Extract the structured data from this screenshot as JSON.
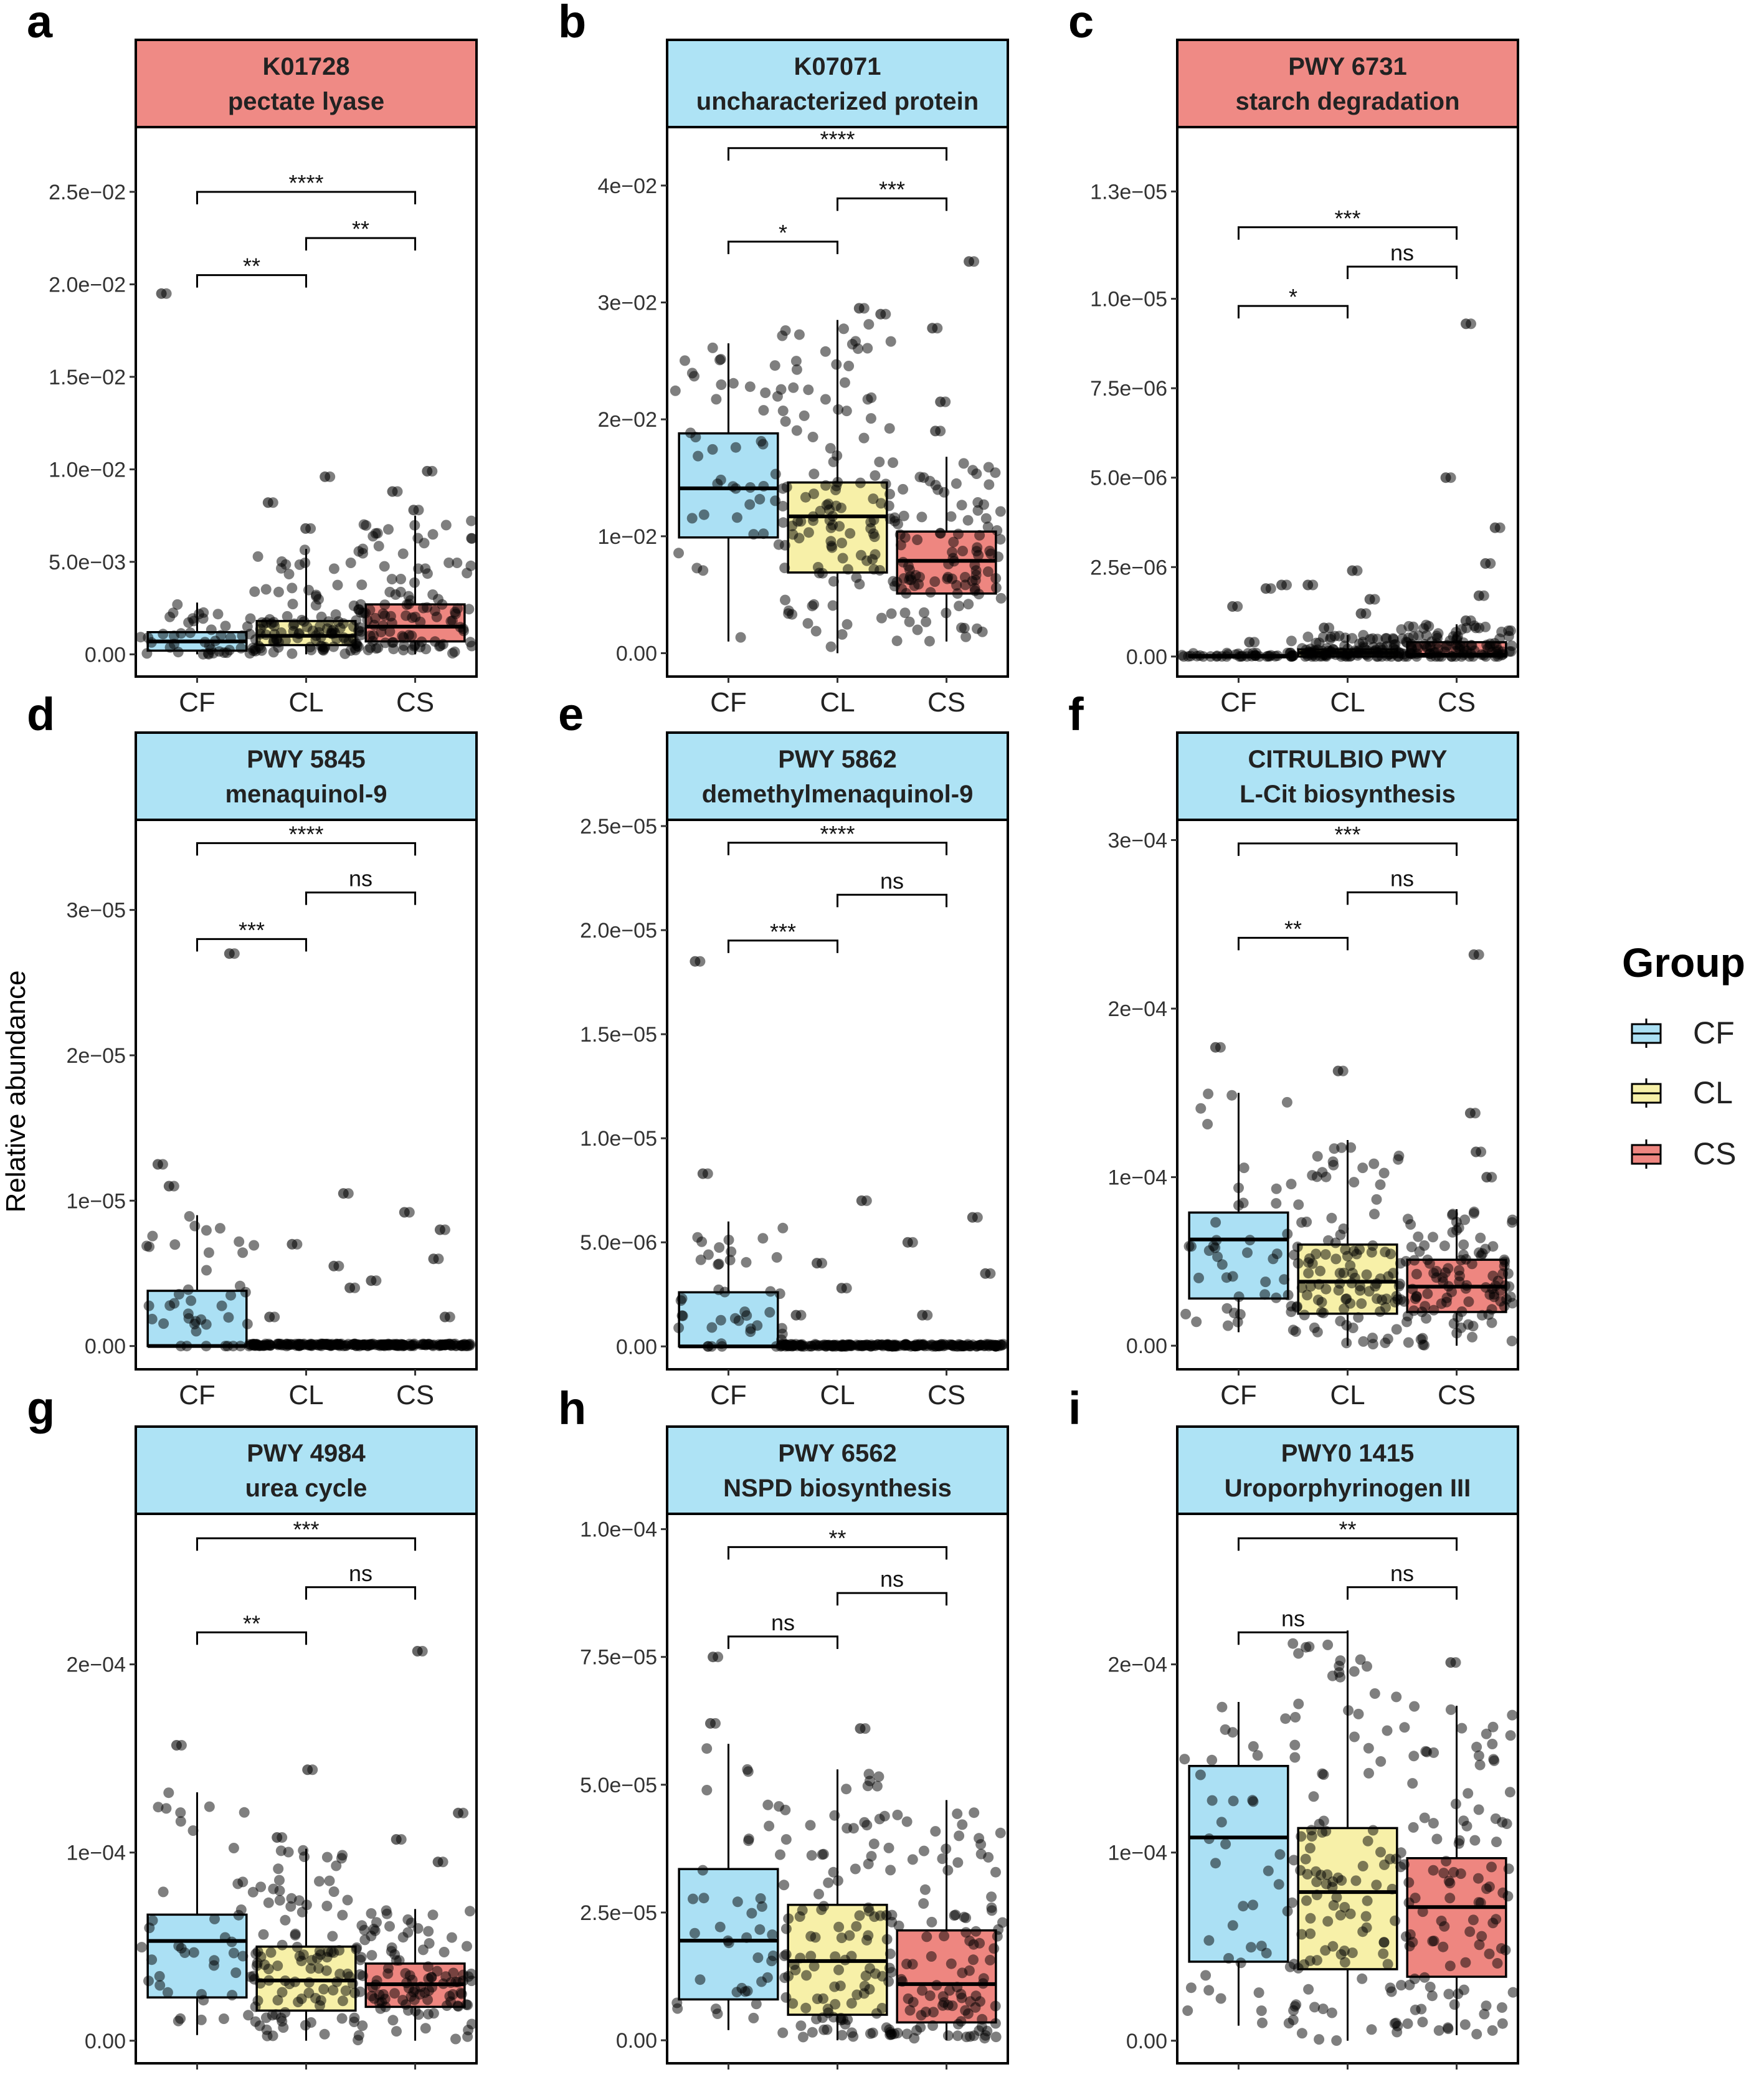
{
  "y_axis_label": "Relative abundance",
  "legend": {
    "title": "Group",
    "items": [
      {
        "label": "CF",
        "color": "#abe0f4"
      },
      {
        "label": "CL",
        "color": "#f7f0a8"
      },
      {
        "label": "CS",
        "color": "#ee8680"
      }
    ]
  },
  "strip_colors": {
    "red": "#ef8a85",
    "blue": "#aee3f5"
  },
  "chart_data": [
    {
      "type": "box",
      "panel": "a",
      "title_line1": "K01728",
      "title_line2": "pectate lyase",
      "strip_color": "red",
      "categories": [
        "CF",
        "CL",
        "CS"
      ],
      "ylim": [
        -0.0012,
        0.0285
      ],
      "ticks": [
        {
          "v": 0,
          "label": "0.00"
        },
        {
          "v": 0.005,
          "label": "5.0e−03"
        },
        {
          "v": 0.01,
          "label": "1.0e−02"
        },
        {
          "v": 0.015,
          "label": "1.5e−02"
        },
        {
          "v": 0.02,
          "label": "2.0e−02"
        },
        {
          "v": 0.025,
          "label": "2.5e−02"
        }
      ],
      "boxes": [
        {
          "min": 0,
          "q1": 0.0002,
          "median": 0.0007,
          "q3": 0.0012,
          "max": 0.0028
        },
        {
          "min": 0,
          "q1": 0.0005,
          "median": 0.001,
          "q3": 0.0018,
          "max": 0.0057
        },
        {
          "min": 0,
          "q1": 0.0007,
          "median": 0.0015,
          "q3": 0.0027,
          "max": 0.0075
        }
      ],
      "outliers": [
        [
          0.0195
        ],
        [
          0.0068,
          0.0082,
          0.0096
        ],
        [
          0.0078,
          0.0088,
          0.0099
        ]
      ],
      "n_points": [
        42,
        110,
        105
      ],
      "brackets": [
        {
          "from": 0,
          "to": 1,
          "y": 0.0205,
          "label": "**"
        },
        {
          "from": 1,
          "to": 2,
          "y": 0.0225,
          "label": "**"
        },
        {
          "from": 0,
          "to": 2,
          "y": 0.025,
          "label": "****"
        }
      ]
    },
    {
      "type": "box",
      "panel": "b",
      "title_line1": "K07071",
      "title_line2": "uncharacterized protein",
      "strip_color": "blue",
      "categories": [
        "CF",
        "CL",
        "CS"
      ],
      "ylim": [
        -0.002,
        0.045
      ],
      "ticks": [
        {
          "v": 0,
          "label": "0.00"
        },
        {
          "v": 0.01,
          "label": "1e−02"
        },
        {
          "v": 0.02,
          "label": "2e−02"
        },
        {
          "v": 0.03,
          "label": "3e−02"
        },
        {
          "v": 0.04,
          "label": "4e−02"
        }
      ],
      "boxes": [
        {
          "min": 0.001,
          "q1": 0.0099,
          "median": 0.0141,
          "q3": 0.0188,
          "max": 0.0265
        },
        {
          "min": 0,
          "q1": 0.0069,
          "median": 0.0117,
          "q3": 0.0146,
          "max": 0.0285
        },
        {
          "min": 0.001,
          "q1": 0.0051,
          "median": 0.0079,
          "q3": 0.0104,
          "max": 0.0168
        }
      ],
      "outliers": [
        [],
        [
          0.029,
          0.0295
        ],
        [
          0.019,
          0.0215,
          0.0278,
          0.0335
        ]
      ],
      "n_points": [
        44,
        110,
        105
      ],
      "brackets": [
        {
          "from": 0,
          "to": 1,
          "y": 0.0352,
          "label": "*"
        },
        {
          "from": 1,
          "to": 2,
          "y": 0.0389,
          "label": "***"
        },
        {
          "from": 0,
          "to": 2,
          "y": 0.0432,
          "label": "****"
        }
      ]
    },
    {
      "type": "box",
      "panel": "c",
      "title_line1": "PWY 6731",
      "title_line2": "starch degradation",
      "strip_color": "red",
      "categories": [
        "CF",
        "CL",
        "CS"
      ],
      "ylim": [
        -5.6e-07,
        1.48e-05
      ],
      "ticks": [
        {
          "v": 0,
          "label": "0.00"
        },
        {
          "v": 2.5e-06,
          "label": "2.5e−06"
        },
        {
          "v": 5e-06,
          "label": "5.0e−06"
        },
        {
          "v": 7.5e-06,
          "label": "7.5e−06"
        },
        {
          "v": 1e-05,
          "label": "1.0e−05"
        },
        {
          "v": 1.3e-05,
          "label": "1.3e−05"
        }
      ],
      "boxes": [
        {
          "min": 0,
          "q1": 0,
          "median": 0,
          "q3": 4e-08,
          "max": 1e-07
        },
        {
          "min": 0,
          "q1": 0,
          "median": 1e-07,
          "q3": 2e-07,
          "max": 6e-07
        },
        {
          "min": 0,
          "q1": 0,
          "median": 5e-08,
          "q3": 4e-07,
          "max": 9e-07
        }
      ],
      "outliers": [
        [
          4e-07,
          1.4e-06,
          1.9e-06,
          2e-06
        ],
        [
          8e-07,
          1.2e-06,
          1.6e-06,
          2e-06,
          2.4e-06
        ],
        [
          1e-06,
          1.7e-06,
          2.6e-06,
          3.6e-06,
          5e-06,
          9.3e-06
        ]
      ],
      "n_points": [
        40,
        110,
        105
      ],
      "brackets": [
        {
          "from": 0,
          "to": 1,
          "y": 9.8e-06,
          "label": "*"
        },
        {
          "from": 1,
          "to": 2,
          "y": 1.09e-05,
          "label": "ns"
        },
        {
          "from": 0,
          "to": 2,
          "y": 1.2e-05,
          "label": "***"
        }
      ]
    },
    {
      "type": "box",
      "panel": "d",
      "title_line1": "PWY 5845",
      "title_line2": "menaquinol-9",
      "strip_color": "blue",
      "categories": [
        "CF",
        "CL",
        "CS"
      ],
      "ylim": [
        -1.6e-06,
        3.62e-05
      ],
      "ticks": [
        {
          "v": 0,
          "label": "0.00"
        },
        {
          "v": 1e-05,
          "label": "1e−05"
        },
        {
          "v": 2e-05,
          "label": "2e−05"
        },
        {
          "v": 3e-05,
          "label": "3e−05"
        }
      ],
      "boxes": [
        {
          "min": 0,
          "q1": 0,
          "median": 0,
          "q3": 3.8e-06,
          "max": 9e-06
        },
        {
          "min": 0,
          "q1": 0,
          "median": 0,
          "q3": 0,
          "max": 0
        },
        {
          "min": 0,
          "q1": 0,
          "median": 0,
          "q3": 0,
          "max": 0
        }
      ],
      "outliers": [
        [
          1.1e-05,
          1.25e-05,
          2.7e-05
        ],
        [
          2e-06,
          4e-06,
          5.5e-06,
          7e-06,
          1.05e-05
        ],
        [
          2e-06,
          4.5e-06,
          6e-06,
          8e-06,
          9.2e-06
        ]
      ],
      "n_points": [
        42,
        110,
        105
      ],
      "brackets": [
        {
          "from": 0,
          "to": 1,
          "y": 2.8e-05,
          "label": "***"
        },
        {
          "from": 1,
          "to": 2,
          "y": 3.12e-05,
          "label": "ns"
        },
        {
          "from": 0,
          "to": 2,
          "y": 3.46e-05,
          "label": "****"
        }
      ]
    },
    {
      "type": "box",
      "panel": "e",
      "title_line1": "PWY 5862",
      "title_line2": "demethylmenaquinol-9",
      "strip_color": "blue",
      "categories": [
        "CF",
        "CL",
        "CS"
      ],
      "ylim": [
        -1.1e-06,
        2.53e-05
      ],
      "ticks": [
        {
          "v": 0,
          "label": "0.00"
        },
        {
          "v": 5e-06,
          "label": "5.0e−06"
        },
        {
          "v": 1e-05,
          "label": "1.0e−05"
        },
        {
          "v": 1.5e-05,
          "label": "1.5e−05"
        },
        {
          "v": 2e-05,
          "label": "2.0e−05"
        },
        {
          "v": 2.5e-05,
          "label": "2.5e−05"
        }
      ],
      "boxes": [
        {
          "min": 0,
          "q1": 0,
          "median": 0,
          "q3": 2.6e-06,
          "max": 6e-06
        },
        {
          "min": 0,
          "q1": 0,
          "median": 0,
          "q3": 0,
          "max": 0
        },
        {
          "min": 0,
          "q1": 0,
          "median": 0,
          "q3": 0,
          "max": 0
        }
      ],
      "outliers": [
        [
          8.3e-06,
          1.85e-05
        ],
        [
          1.5e-06,
          2.8e-06,
          4e-06,
          7e-06
        ],
        [
          1.5e-06,
          3.5e-06,
          5e-06,
          6.2e-06
        ]
      ],
      "n_points": [
        42,
        110,
        105
      ],
      "brackets": [
        {
          "from": 0,
          "to": 1,
          "y": 1.95e-05,
          "label": "***"
        },
        {
          "from": 1,
          "to": 2,
          "y": 2.17e-05,
          "label": "ns"
        },
        {
          "from": 0,
          "to": 2,
          "y": 2.42e-05,
          "label": "****"
        }
      ]
    },
    {
      "type": "box",
      "panel": "f",
      "title_line1": "CITRULBIO PWY",
      "title_line2": "L-Cit biosynthesis",
      "strip_color": "blue",
      "categories": [
        "CF",
        "CL",
        "CS"
      ],
      "ylim": [
        -1.4e-05,
        0.000312
      ],
      "ticks": [
        {
          "v": 0,
          "label": "0.00"
        },
        {
          "v": 0.0001,
          "label": "1e−04"
        },
        {
          "v": 0.0002,
          "label": "2e−04"
        },
        {
          "v": 0.0003,
          "label": "3e−04"
        }
      ],
      "boxes": [
        {
          "min": 8e-06,
          "q1": 2.8e-05,
          "median": 6.3e-05,
          "q3": 7.9e-05,
          "max": 0.00015
        },
        {
          "min": 0,
          "q1": 1.9e-05,
          "median": 3.8e-05,
          "q3": 6e-05,
          "max": 0.000122
        },
        {
          "min": 0,
          "q1": 2e-05,
          "median": 3.5e-05,
          "q3": 5.1e-05,
          "max": 8.1e-05
        }
      ],
      "outliers": [
        [
          0.000177
        ],
        [
          0.000163
        ],
        [
          0.0001,
          0.000115,
          0.000138,
          0.000232
        ]
      ],
      "n_points": [
        42,
        110,
        105
      ],
      "brackets": [
        {
          "from": 0,
          "to": 1,
          "y": 0.000242,
          "label": "**"
        },
        {
          "from": 1,
          "to": 2,
          "y": 0.000269,
          "label": "ns"
        },
        {
          "from": 0,
          "to": 2,
          "y": 0.000298,
          "label": "***"
        }
      ]
    },
    {
      "type": "box",
      "panel": "g",
      "title_line1": "PWY 4984",
      "title_line2": "urea cycle",
      "strip_color": "blue",
      "categories": [
        "CF",
        "CL",
        "CS"
      ],
      "ylim": [
        -1.2e-05,
        0.00028
      ],
      "ticks": [
        {
          "v": 0,
          "label": "0.00"
        },
        {
          "v": 0.0001,
          "label": "1e−04"
        },
        {
          "v": 0.0002,
          "label": "2e−04"
        }
      ],
      "boxes": [
        {
          "min": 3e-06,
          "q1": 2.3e-05,
          "median": 5.3e-05,
          "q3": 6.7e-05,
          "max": 0.000132
        },
        {
          "min": 0,
          "q1": 1.6e-05,
          "median": 3.2e-05,
          "q3": 5e-05,
          "max": 0.000102
        },
        {
          "min": 0,
          "q1": 1.8e-05,
          "median": 3e-05,
          "q3": 4.1e-05,
          "max": 7e-05
        }
      ],
      "outliers": [
        [
          0.000157
        ],
        [
          0.000108,
          0.000144
        ],
        [
          9.5e-05,
          0.000107,
          0.000121,
          0.000207
        ]
      ],
      "n_points": [
        42,
        110,
        105
      ],
      "brackets": [
        {
          "from": 0,
          "to": 1,
          "y": 0.000217,
          "label": "**"
        },
        {
          "from": 1,
          "to": 2,
          "y": 0.000241,
          "label": "ns"
        },
        {
          "from": 0,
          "to": 2,
          "y": 0.000267,
          "label": "***"
        }
      ]
    },
    {
      "type": "box",
      "panel": "h",
      "title_line1": "PWY 6562",
      "title_line2": "NSPD biosynthesis",
      "strip_color": "blue",
      "categories": [
        "CF",
        "CL",
        "CS"
      ],
      "ylim": [
        -4.5e-06,
        0.000103
      ],
      "ticks": [
        {
          "v": 0,
          "label": "0.00"
        },
        {
          "v": 2.5e-05,
          "label": "2.5e−05"
        },
        {
          "v": 5e-05,
          "label": "5.0e−05"
        },
        {
          "v": 7.5e-05,
          "label": "7.5e−05"
        },
        {
          "v": 0.0001,
          "label": "1.0e−04"
        }
      ],
      "boxes": [
        {
          "min": 2e-06,
          "q1": 8e-06,
          "median": 1.95e-05,
          "q3": 3.35e-05,
          "max": 5.8e-05
        },
        {
          "min": 0,
          "q1": 5e-06,
          "median": 1.55e-05,
          "q3": 2.65e-05,
          "max": 5.3e-05
        },
        {
          "min": 0,
          "q1": 3.5e-06,
          "median": 1.1e-05,
          "q3": 2.15e-05,
          "max": 4.7e-05
        }
      ],
      "outliers": [
        [
          6.2e-05,
          7.5e-05
        ],
        [
          6.1e-05
        ],
        []
      ],
      "n_points": [
        42,
        110,
        105
      ],
      "brackets": [
        {
          "from": 0,
          "to": 1,
          "y": 7.9e-05,
          "label": "ns"
        },
        {
          "from": 1,
          "to": 2,
          "y": 8.75e-05,
          "label": "ns"
        },
        {
          "from": 0,
          "to": 2,
          "y": 9.65e-05,
          "label": "**"
        }
      ]
    },
    {
      "type": "box",
      "panel": "i",
      "title_line1": "PWY0 1415",
      "title_line2": "Uroporphyrinogen III",
      "strip_color": "blue",
      "categories": [
        "CF",
        "CL",
        "CS"
      ],
      "ylim": [
        -1.2e-05,
        0.00028
      ],
      "ticks": [
        {
          "v": 0,
          "label": "0.00"
        },
        {
          "v": 0.0001,
          "label": "1e−04"
        },
        {
          "v": 0.0002,
          "label": "2e−04"
        }
      ],
      "boxes": [
        {
          "min": 8e-06,
          "q1": 4.2e-05,
          "median": 0.000108,
          "q3": 0.000146,
          "max": 0.00018
        },
        {
          "min": 0,
          "q1": 3.8e-05,
          "median": 7.9e-05,
          "q3": 0.000113,
          "max": 0.000218
        },
        {
          "min": 3e-06,
          "q1": 3.4e-05,
          "median": 7.1e-05,
          "q3": 9.7e-05,
          "max": 0.000178
        }
      ],
      "outliers": [
        [],
        [],
        [
          0.000201
        ]
      ],
      "n_points": [
        42,
        110,
        105
      ],
      "brackets": [
        {
          "from": 0,
          "to": 1,
          "y": 0.000217,
          "label": "ns"
        },
        {
          "from": 1,
          "to": 2,
          "y": 0.000241,
          "label": "ns"
        },
        {
          "from": 0,
          "to": 2,
          "y": 0.000267,
          "label": "**"
        }
      ]
    }
  ]
}
